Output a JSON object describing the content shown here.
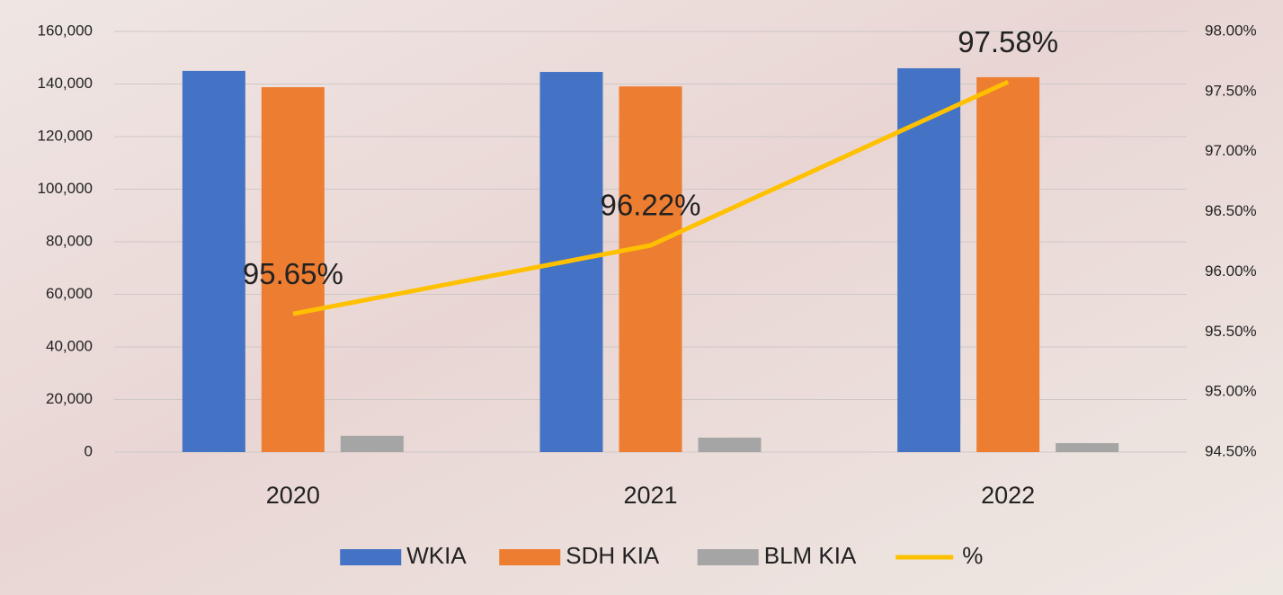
{
  "chart_data": {
    "type": "bar",
    "categories": [
      "2020",
      "2021",
      "2022"
    ],
    "series": [
      {
        "name": "WKIA",
        "color": "#4472c4",
        "values": [
          145000,
          144600,
          146000
        ]
      },
      {
        "name": "SDH KIA",
        "color": "#ed7d31",
        "values": [
          138800,
          139100,
          142600
        ]
      },
      {
        "name": "BLM KIA",
        "color": "#a5a5a5",
        "values": [
          6200,
          5500,
          3400
        ]
      },
      {
        "name": "%",
        "type": "line",
        "axis": "y2",
        "color": "#ffc000",
        "values": [
          95.65,
          96.22,
          97.58
        ],
        "value_labels": [
          "95.65%",
          "96.22%",
          "97.58%"
        ]
      }
    ],
    "ylim": [
      0,
      160000
    ],
    "yticks": [
      0,
      {
        "value": 20000,
        "label": "20,000"
      },
      {
        "value": 40000,
        "label": "40,000"
      },
      {
        "value": 60000,
        "label": "60,000"
      },
      {
        "value": 80000,
        "label": "80,000"
      },
      {
        "value": 100000,
        "label": "100,000"
      },
      {
        "value": 120000,
        "label": "120,000"
      },
      {
        "value": 140000,
        "label": "140,000"
      },
      {
        "value": 160000,
        "label": "160,000"
      }
    ],
    "y2lim": [
      94.5,
      98
    ],
    "y2ticks": [
      {
        "value": 94.5,
        "label": "94.50%"
      },
      {
        "value": 95,
        "label": "95.00%"
      },
      {
        "value": 95.5,
        "label": "95.50%"
      },
      {
        "value": 96,
        "label": "96.00%"
      },
      {
        "value": 96.5,
        "label": "96.50%"
      },
      {
        "value": 97,
        "label": "97.00%"
      },
      {
        "value": 97.5,
        "label": "97.50%"
      },
      {
        "value": 98,
        "label": "98.00%"
      }
    ],
    "grid": true,
    "legend": "bottom"
  }
}
